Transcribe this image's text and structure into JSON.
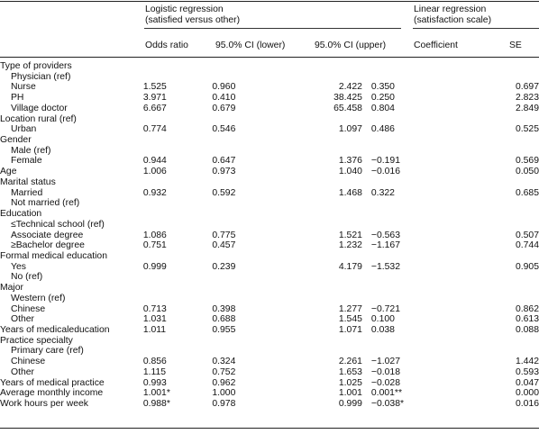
{
  "header": {
    "logistic_title_line1": "Logistic regression",
    "logistic_title_line2": "(satisfied versus other)",
    "linear_title_line1": "Linear regression",
    "linear_title_line2": "(satisfaction scale)",
    "columns": [
      "Odds ratio",
      "95.0% CI (lower)",
      "95.0% CI (upper)",
      "Coefficient",
      "SE"
    ]
  },
  "rows": [
    {
      "label": "Type of providers",
      "indent": false,
      "v": [
        "",
        "",
        "",
        "",
        ""
      ]
    },
    {
      "label": "Physician (ref)",
      "indent": true,
      "v": [
        "",
        "",
        "",
        "",
        ""
      ]
    },
    {
      "label": "Nurse",
      "indent": true,
      "v": [
        "1.525",
        "0.960",
        "2.422",
        "0.350",
        "0.697"
      ]
    },
    {
      "label": "PH",
      "indent": true,
      "v": [
        "3.971",
        "0.410",
        "38.425",
        "0.250",
        "2.823"
      ]
    },
    {
      "label": "Village doctor",
      "indent": true,
      "v": [
        "6.667",
        "0.679",
        "65.458",
        "0.804",
        "2.849"
      ]
    },
    {
      "label": "Location rural (ref)",
      "indent": false,
      "v": [
        "",
        "",
        "",
        "",
        ""
      ]
    },
    {
      "label": "Urban",
      "indent": true,
      "v": [
        "0.774",
        "0.546",
        "1.097",
        "0.486",
        "0.525"
      ]
    },
    {
      "label": "Gender",
      "indent": false,
      "v": [
        "",
        "",
        "",
        "",
        ""
      ]
    },
    {
      "label": "Male (ref)",
      "indent": true,
      "v": [
        "",
        "",
        "",
        "",
        ""
      ]
    },
    {
      "label": "Female",
      "indent": true,
      "v": [
        "0.944",
        "0.647",
        "1.376",
        "−0.191",
        "0.569"
      ]
    },
    {
      "label": "Age",
      "indent": false,
      "v": [
        "1.006",
        "0.973",
        "1.040",
        "−0.016",
        "0.050"
      ]
    },
    {
      "label": "Marital status",
      "indent": false,
      "v": [
        "",
        "",
        "",
        "",
        ""
      ]
    },
    {
      "label": "Married",
      "indent": true,
      "v": [
        "0.932",
        "0.592",
        "1.468",
        "0.322",
        "0.685"
      ]
    },
    {
      "label": "Not married (ref)",
      "indent": true,
      "v": [
        "",
        "",
        "",
        "",
        ""
      ]
    },
    {
      "label": "Education",
      "indent": false,
      "v": [
        "",
        "",
        "",
        "",
        ""
      ]
    },
    {
      "label": "≤Technical school (ref)",
      "indent": true,
      "v": [
        "",
        "",
        "",
        "",
        ""
      ]
    },
    {
      "label": "Associate degree",
      "indent": true,
      "v": [
        "1.086",
        "0.775",
        "1.521",
        "−0.563",
        "0.507"
      ]
    },
    {
      "label": "≥Bachelor degree",
      "indent": true,
      "v": [
        "0.751",
        "0.457",
        "1.232",
        "−1.167",
        "0.744"
      ]
    },
    {
      "label": "Formal medical education",
      "indent": false,
      "v": [
        "",
        "",
        "",
        "",
        ""
      ]
    },
    {
      "label": "Yes",
      "indent": true,
      "v": [
        "0.999",
        "0.239",
        "4.179",
        "−1.532",
        "0.905"
      ]
    },
    {
      "label": "No (ref)",
      "indent": true,
      "v": [
        "",
        "",
        "",
        "",
        ""
      ]
    },
    {
      "label": "Major",
      "indent": false,
      "v": [
        "",
        "",
        "",
        "",
        ""
      ]
    },
    {
      "label": "Western (ref)",
      "indent": true,
      "v": [
        "",
        "",
        "",
        "",
        ""
      ]
    },
    {
      "label": "Chinese",
      "indent": true,
      "v": [
        "0.713",
        "0.398",
        "1.277",
        "−0.721",
        "0.862"
      ]
    },
    {
      "label": "Other",
      "indent": true,
      "v": [
        "1.031",
        "0.688",
        "1.545",
        "0.100",
        "0.613"
      ]
    },
    {
      "label": "Years of medicaleducation",
      "indent": false,
      "v": [
        "1.011",
        "0.955",
        "1.071",
        "0.038",
        "0.088"
      ]
    },
    {
      "label": "Practice specialty",
      "indent": false,
      "v": [
        "",
        "",
        "",
        "",
        ""
      ]
    },
    {
      "label": "Primary care (ref)",
      "indent": true,
      "v": [
        "",
        "",
        "",
        "",
        ""
      ]
    },
    {
      "label": "Chinese",
      "indent": true,
      "v": [
        "0.856",
        "0.324",
        "2.261",
        "−1.027",
        "1.442"
      ]
    },
    {
      "label": "Other",
      "indent": true,
      "v": [
        "1.115",
        "0.752",
        "1.653",
        "−0.018",
        "0.593"
      ]
    },
    {
      "label": "Years of medical practice",
      "indent": false,
      "v": [
        "0.993",
        "0.962",
        "1.025",
        "−0.028",
        "0.047"
      ]
    },
    {
      "label": "Average monthly income",
      "indent": false,
      "v": [
        "1.001*",
        "1.000",
        "1.001",
        "0.001**",
        "0.000"
      ]
    },
    {
      "label": "Work hours per week",
      "indent": false,
      "v": [
        "0.988*",
        "0.978",
        "0.999",
        "−0.038*",
        "0.016"
      ]
    }
  ]
}
